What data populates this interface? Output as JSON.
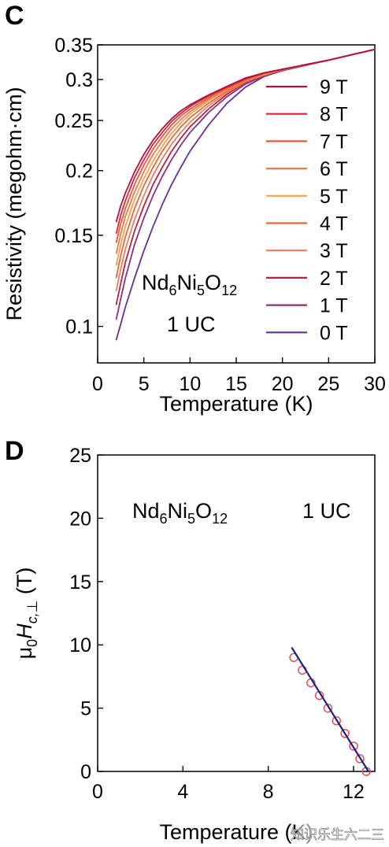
{
  "chart_data": [
    {
      "panel_label": "C",
      "type": "line",
      "xlabel": "Temperature (K)",
      "ylabel": "Resistivity (megohm·cm)",
      "xlim": [
        0,
        30
      ],
      "ylim": [
        0.085,
        0.35
      ],
      "yscale": "log",
      "grid": false,
      "x_ticks": [
        0,
        5,
        10,
        15,
        20,
        25,
        30
      ],
      "y_ticks": [
        0.1,
        0.15,
        0.2,
        0.25,
        0.3,
        0.35
      ],
      "legend_position": "right",
      "annotation": {
        "formula": [
          {
            "text": "Nd",
            "sub": false
          },
          {
            "text": "6",
            "sub": true
          },
          {
            "text": "Ni",
            "sub": false
          },
          {
            "text": "5",
            "sub": true
          },
          {
            "text": "O",
            "sub": false
          },
          {
            "text": "12",
            "sub": true
          }
        ],
        "thickness": "1 UC"
      },
      "x": [
        2,
        2.5,
        3,
        4,
        5,
        6,
        7,
        8,
        9,
        10,
        12,
        14,
        16,
        18,
        20,
        25,
        30
      ],
      "series": [
        {
          "name": "9 T",
          "color": "#b0123f",
          "values": [
            0.159,
            0.171,
            0.181,
            0.199,
            0.215,
            0.229,
            0.241,
            0.252,
            0.261,
            0.268,
            0.28,
            0.291,
            0.302,
            0.309,
            0.314,
            0.327,
            0.343
          ]
        },
        {
          "name": "8 T",
          "color": "#d5263a",
          "values": [
            0.151,
            0.164,
            0.175,
            0.194,
            0.21,
            0.225,
            0.237,
            0.249,
            0.258,
            0.266,
            0.279,
            0.29,
            0.301,
            0.309,
            0.314,
            0.327,
            0.343
          ]
        },
        {
          "name": "7 T",
          "color": "#e9573f",
          "values": [
            0.145,
            0.158,
            0.169,
            0.188,
            0.205,
            0.22,
            0.233,
            0.245,
            0.255,
            0.263,
            0.277,
            0.289,
            0.3,
            0.308,
            0.314,
            0.327,
            0.343
          ]
        },
        {
          "name": "6 T",
          "color": "#ee7a45",
          "values": [
            0.138,
            0.151,
            0.163,
            0.182,
            0.199,
            0.215,
            0.228,
            0.241,
            0.251,
            0.26,
            0.275,
            0.288,
            0.299,
            0.308,
            0.314,
            0.327,
            0.343
          ]
        },
        {
          "name": "5 T",
          "color": "#f2a24c",
          "values": [
            0.131,
            0.144,
            0.156,
            0.176,
            0.193,
            0.209,
            0.223,
            0.236,
            0.247,
            0.257,
            0.273,
            0.287,
            0.299,
            0.307,
            0.314,
            0.327,
            0.343
          ]
        },
        {
          "name": "4 T",
          "color": "#e8663a",
          "values": [
            0.124,
            0.137,
            0.149,
            0.169,
            0.187,
            0.203,
            0.218,
            0.231,
            0.243,
            0.253,
            0.27,
            0.285,
            0.298,
            0.307,
            0.313,
            0.327,
            0.343
          ]
        },
        {
          "name": "3 T",
          "color": "#e57f63",
          "values": [
            0.117,
            0.129,
            0.141,
            0.161,
            0.179,
            0.196,
            0.211,
            0.225,
            0.237,
            0.248,
            0.267,
            0.283,
            0.297,
            0.306,
            0.313,
            0.327,
            0.343
          ]
        },
        {
          "name": "2 T",
          "color": "#b8213e",
          "values": [
            0.11,
            0.121,
            0.133,
            0.153,
            0.171,
            0.188,
            0.203,
            0.218,
            0.231,
            0.243,
            0.263,
            0.281,
            0.296,
            0.306,
            0.313,
            0.327,
            0.343
          ]
        },
        {
          "name": "1 T",
          "color": "#8e2f7d",
          "values": [
            0.103,
            0.113,
            0.124,
            0.144,
            0.162,
            0.179,
            0.195,
            0.21,
            0.224,
            0.237,
            0.259,
            0.278,
            0.294,
            0.305,
            0.313,
            0.327,
            0.343
          ]
        },
        {
          "name": "0 T",
          "color": "#6c2d96",
          "values": [
            0.094,
            0.101,
            0.109,
            0.124,
            0.14,
            0.156,
            0.172,
            0.188,
            0.203,
            0.218,
            0.245,
            0.27,
            0.29,
            0.304,
            0.312,
            0.327,
            0.343
          ]
        }
      ]
    },
    {
      "panel_label": "D",
      "type": "scatter",
      "xlabel": "Temperature (K)",
      "ylabel_parts": {
        "mu": "μ",
        "mu_sub": "0",
        "h": "H",
        "h_sub": "c,⊥",
        "unit": " (T)"
      },
      "xlim": [
        0,
        13
      ],
      "ylim": [
        0,
        25
      ],
      "grid": false,
      "x_ticks": [
        0,
        4,
        8,
        12
      ],
      "y_ticks": [
        0,
        5,
        10,
        15,
        20,
        25
      ],
      "annotation": {
        "formula": [
          {
            "text": "Nd",
            "sub": false
          },
          {
            "text": "6",
            "sub": true
          },
          {
            "text": "Ni",
            "sub": false
          },
          {
            "text": "5",
            "sub": true
          },
          {
            "text": "O",
            "sub": false
          },
          {
            "text": "12",
            "sub": true
          }
        ],
        "thickness": "1 UC"
      },
      "points": {
        "color": "#e0505a",
        "x": [
          9.2,
          9.6,
          10.0,
          10.4,
          10.8,
          11.2,
          11.6,
          12.0,
          12.3,
          12.6
        ],
        "y": [
          9.0,
          8.0,
          7.0,
          6.0,
          5.0,
          4.0,
          3.0,
          2.0,
          1.0,
          0.0
        ]
      },
      "fit_line": {
        "color": "#1a237e",
        "x": [
          9.1,
          12.7
        ],
        "y": [
          9.8,
          0.0
        ]
      }
    }
  ],
  "watermark": "知识乐生六二三"
}
